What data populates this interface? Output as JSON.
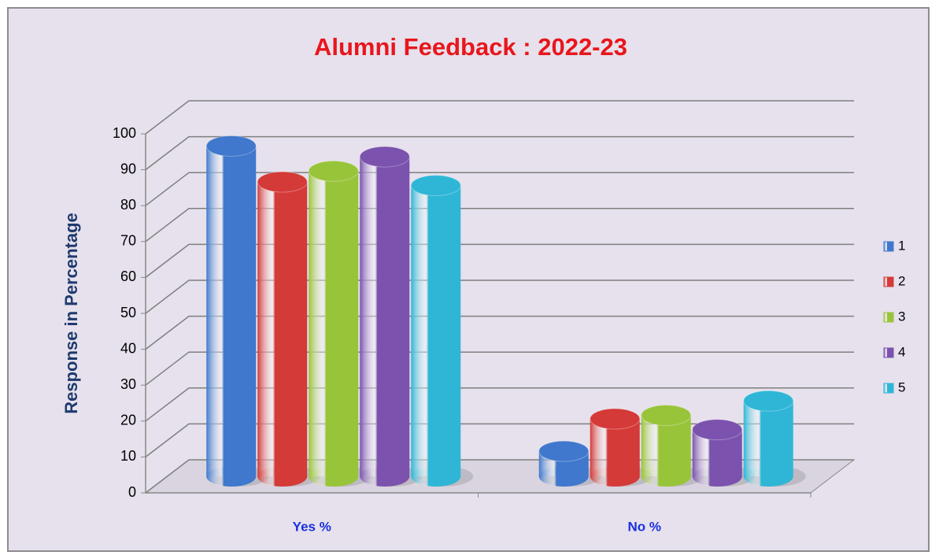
{
  "chart_data": {
    "type": "bar3d",
    "title": "Alumni Feedback : 2022-23",
    "y_label": "Response in Percentage",
    "categories": [
      "Yes %",
      "No %"
    ],
    "series": [
      {
        "name": "1",
        "color": "#3f78cc",
        "values": [
          92,
          7
        ]
      },
      {
        "name": "2",
        "color": "#d43a38",
        "values": [
          82,
          16
        ]
      },
      {
        "name": "3",
        "color": "#98c43a",
        "values": [
          85,
          17
        ]
      },
      {
        "name": "4",
        "color": "#7b52ad",
        "values": [
          89,
          13
        ]
      },
      {
        "name": "5",
        "color": "#2fb6d6",
        "values": [
          81,
          21
        ]
      }
    ],
    "ylim": [
      0,
      100
    ],
    "yticks": [
      0,
      10,
      20,
      30,
      40,
      50,
      60,
      70,
      80,
      90,
      100
    ],
    "grid": true,
    "legend": "right"
  }
}
